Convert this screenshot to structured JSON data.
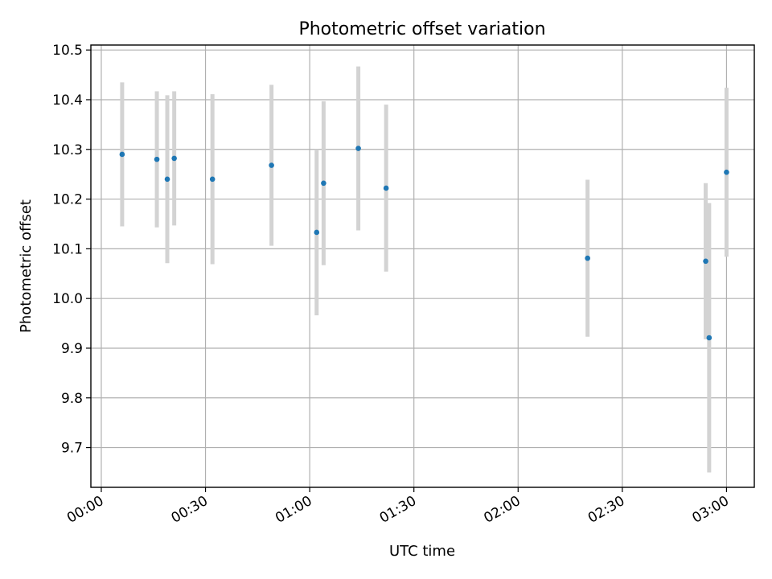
{
  "chart_data": {
    "type": "scatter",
    "title": "Photometric offset variation",
    "xlabel": "UTC time",
    "ylabel": "Photometric offset",
    "grid": true,
    "x_ticks": [
      "00:00",
      "00:30",
      "01:00",
      "01:30",
      "02:00",
      "02:30",
      "03:00"
    ],
    "y_ticks": [
      "9.7",
      "9.8",
      "9.9",
      "10.0",
      "10.1",
      "10.2",
      "10.3",
      "10.4",
      "10.5"
    ],
    "xlim": [
      "23:57",
      "03:08"
    ],
    "ylim": [
      9.62,
      10.51
    ],
    "marker_color": "#1f77b4",
    "errorbar_color": "#d3d3d3",
    "points": [
      {
        "x": "00:06",
        "y": 10.29,
        "err": 0.145
      },
      {
        "x": "00:16",
        "y": 10.28,
        "err": 0.137
      },
      {
        "x": "00:19",
        "y": 10.24,
        "err": 0.169
      },
      {
        "x": "00:21",
        "y": 10.282,
        "err": 0.135
      },
      {
        "x": "00:32",
        "y": 10.24,
        "err": 0.171
      },
      {
        "x": "00:49",
        "y": 10.268,
        "err": 0.162
      },
      {
        "x": "01:02",
        "y": 10.133,
        "err": 0.167
      },
      {
        "x": "01:04",
        "y": 10.232,
        "err": 0.165
      },
      {
        "x": "01:14",
        "y": 10.302,
        "err": 0.165
      },
      {
        "x": "01:22",
        "y": 10.222,
        "err": 0.168
      },
      {
        "x": "02:20",
        "y": 10.081,
        "err": 0.158
      },
      {
        "x": "02:54",
        "y": 10.075,
        "err": 0.157
      },
      {
        "x": "02:55",
        "y": 9.921,
        "err": 0.271
      },
      {
        "x": "03:00",
        "y": 10.254,
        "err": 0.17
      }
    ]
  }
}
